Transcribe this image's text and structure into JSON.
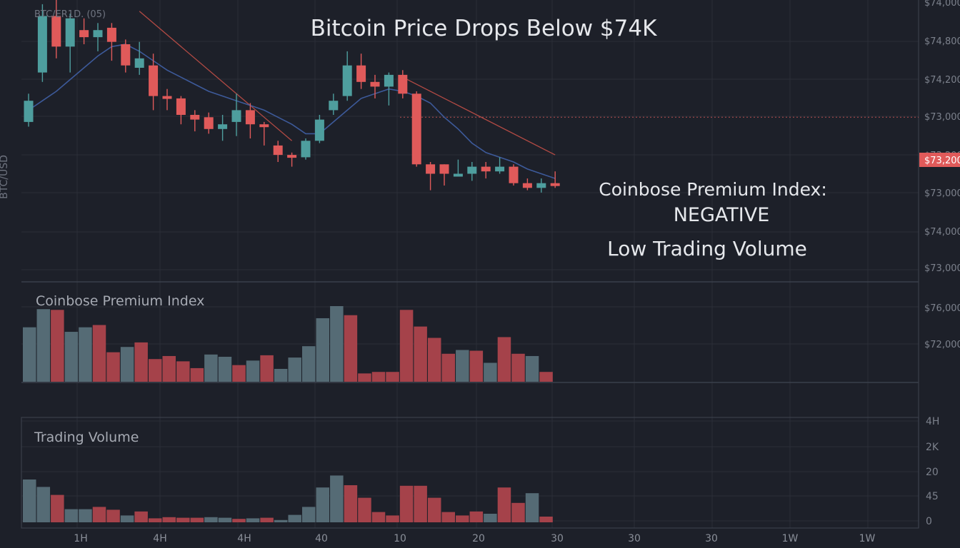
{
  "title": "Bitcoin Price Drops Below $74K",
  "symbol_label": "BTC/ER1D. (05)",
  "y_axis_title": "BTC/USD",
  "annotations": {
    "premium_line1": "Coinbose Premium Index:",
    "premium_line2": "NEGATIVE",
    "volume_note": "Low Trading Volume"
  },
  "colors": {
    "background": "#1d2029",
    "up": "#4e9e9e",
    "down": "#e05a5a",
    "bar_up": "#556b75",
    "bar_down": "#a5424a",
    "ma": "#3d5a9a",
    "trend": "#b24a44",
    "price_tag": "#e05a5a",
    "grid": "#2a2e38"
  },
  "chart_data": [
    {
      "type": "candlestick",
      "title": "Bitcoin Price Drops Below $74K",
      "ylabel": "BTC/USD",
      "y_range": [
        0,
        100
      ],
      "price_axis_labels": [
        "$74,000",
        "$74,800",
        "$74,200",
        "$73,000",
        "$73,200",
        "$73,000",
        "$74,000",
        "$73,000"
      ],
      "current_price_label": "$73,200",
      "current_price_level": 69,
      "candles": [
        {
          "o": 67,
          "c": 76,
          "h": 79,
          "l": 65
        },
        {
          "o": 88,
          "c": 112,
          "h": 117,
          "l": 84
        },
        {
          "o": 112,
          "c": 99,
          "h": 126,
          "l": 94
        },
        {
          "o": 99,
          "c": 111,
          "h": 113,
          "l": 88
        },
        {
          "o": 106,
          "c": 103,
          "h": 111,
          "l": 100
        },
        {
          "o": 103,
          "c": 106,
          "h": 109,
          "l": 97
        },
        {
          "o": 107,
          "c": 101,
          "h": 109,
          "l": 93
        },
        {
          "o": 100,
          "c": 91,
          "h": 102,
          "l": 88
        },
        {
          "o": 90,
          "c": 94,
          "h": 101,
          "l": 87
        },
        {
          "o": 91,
          "c": 78,
          "h": 96,
          "l": 72
        },
        {
          "o": 78,
          "c": 77,
          "h": 81,
          "l": 72
        },
        {
          "o": 77,
          "c": 70,
          "h": 78,
          "l": 66
        },
        {
          "o": 70,
          "c": 68,
          "h": 72,
          "l": 63
        },
        {
          "o": 69,
          "c": 64,
          "h": 71,
          "l": 62
        },
        {
          "o": 64,
          "c": 66,
          "h": 70,
          "l": 59
        },
        {
          "o": 67,
          "c": 72,
          "h": 79,
          "l": 61
        },
        {
          "o": 72,
          "c": 66,
          "h": 75,
          "l": 60
        },
        {
          "o": 66,
          "c": 65,
          "h": 67,
          "l": 57
        },
        {
          "o": 57,
          "c": 53,
          "h": 59,
          "l": 50
        },
        {
          "o": 53,
          "c": 52,
          "h": 54,
          "l": 48
        },
        {
          "o": 52,
          "c": 59,
          "h": 60,
          "l": 51
        },
        {
          "o": 59,
          "c": 68,
          "h": 70,
          "l": 58
        },
        {
          "o": 72,
          "c": 76,
          "h": 79,
          "l": 70
        },
        {
          "o": 78,
          "c": 91,
          "h": 97,
          "l": 76
        },
        {
          "o": 91,
          "c": 84,
          "h": 96,
          "l": 81
        },
        {
          "o": 84,
          "c": 82,
          "h": 87,
          "l": 77
        },
        {
          "o": 82,
          "c": 87,
          "h": 88,
          "l": 74
        },
        {
          "o": 87,
          "c": 79,
          "h": 89,
          "l": 77
        },
        {
          "o": 79,
          "c": 49,
          "h": 80,
          "l": 48
        },
        {
          "o": 49,
          "c": 45,
          "h": 50,
          "l": 38
        },
        {
          "o": 49,
          "c": 45,
          "h": 49,
          "l": 40
        },
        {
          "o": 45,
          "c": 45,
          "h": 51,
          "l": 44
        },
        {
          "o": 45,
          "c": 48,
          "h": 50,
          "l": 42
        },
        {
          "o": 48,
          "c": 46,
          "h": 50,
          "l": 43
        },
        {
          "o": 46,
          "c": 48,
          "h": 52,
          "l": 45
        },
        {
          "o": 48,
          "c": 41,
          "h": 49,
          "l": 40
        },
        {
          "o": 41,
          "c": 39,
          "h": 43,
          "l": 38
        },
        {
          "o": 39,
          "c": 41,
          "h": 43,
          "l": 37
        },
        {
          "o": 41,
          "c": 40,
          "h": 46,
          "l": 39
        }
      ],
      "moving_average": [
        72,
        76,
        80,
        85,
        90,
        95,
        99,
        100,
        97,
        93,
        89,
        86,
        83,
        80,
        78,
        76,
        74,
        72,
        69,
        66,
        62,
        62,
        67,
        72,
        77,
        79,
        81,
        80,
        78,
        75,
        69,
        64,
        58,
        54,
        52,
        50,
        47,
        45,
        43
      ],
      "trendlines": [
        {
          "from": [
            8,
            114
          ],
          "to": [
            19,
            59
          ]
        },
        {
          "from": [
            27,
            86
          ],
          "to": [
            38,
            53
          ]
        }
      ]
    },
    {
      "type": "bar",
      "title": "Coinbose Premium Index",
      "y_range": [
        0,
        100
      ],
      "axis_labels": [
        "$76,000",
        "$72,000"
      ],
      "bars": [
        {
          "v": 72,
          "up": true
        },
        {
          "v": 96,
          "up": true
        },
        {
          "v": 95,
          "up": false
        },
        {
          "v": 66,
          "up": true
        },
        {
          "v": 72,
          "up": true
        },
        {
          "v": 75,
          "up": false
        },
        {
          "v": 39,
          "up": false
        },
        {
          "v": 46,
          "up": true
        },
        {
          "v": 52,
          "up": false
        },
        {
          "v": 30,
          "up": false
        },
        {
          "v": 34,
          "up": false
        },
        {
          "v": 27,
          "up": false
        },
        {
          "v": 18,
          "up": false
        },
        {
          "v": 36,
          "up": true
        },
        {
          "v": 33,
          "up": true
        },
        {
          "v": 22,
          "up": false
        },
        {
          "v": 28,
          "up": true
        },
        {
          "v": 35,
          "up": false
        },
        {
          "v": 17,
          "up": true
        },
        {
          "v": 32,
          "up": true
        },
        {
          "v": 47,
          "up": true
        },
        {
          "v": 84,
          "up": true
        },
        {
          "v": 100,
          "up": true
        },
        {
          "v": 88,
          "up": false
        },
        {
          "v": 11,
          "up": false
        },
        {
          "v": 13,
          "up": false
        },
        {
          "v": 13,
          "up": false
        },
        {
          "v": 95,
          "up": false
        },
        {
          "v": 73,
          "up": false
        },
        {
          "v": 58,
          "up": false
        },
        {
          "v": 37,
          "up": false
        },
        {
          "v": 42,
          "up": true
        },
        {
          "v": 41,
          "up": false
        },
        {
          "v": 25,
          "up": true
        },
        {
          "v": 59,
          "up": false
        },
        {
          "v": 37,
          "up": false
        },
        {
          "v": 34,
          "up": true
        },
        {
          "v": 13,
          "up": false
        }
      ]
    },
    {
      "type": "bar",
      "title": "Trading Volume",
      "y_range": [
        0,
        100
      ],
      "axis_labels": [
        "4H",
        "2K",
        "20",
        "45",
        "0"
      ],
      "x_tick_labels": [
        "1H",
        "4H",
        "4H",
        "40",
        "10",
        "20",
        "30",
        "30",
        "30",
        "1W",
        "1W"
      ],
      "bars": [
        {
          "v": 75,
          "up": true
        },
        {
          "v": 62,
          "up": true
        },
        {
          "v": 48,
          "up": false
        },
        {
          "v": 23,
          "up": true
        },
        {
          "v": 23,
          "up": true
        },
        {
          "v": 27,
          "up": false
        },
        {
          "v": 22,
          "up": false
        },
        {
          "v": 12,
          "up": true
        },
        {
          "v": 19,
          "up": false
        },
        {
          "v": 7,
          "up": false
        },
        {
          "v": 9,
          "up": false
        },
        {
          "v": 8,
          "up": false
        },
        {
          "v": 8,
          "up": false
        },
        {
          "v": 9,
          "up": true
        },
        {
          "v": 8,
          "up": true
        },
        {
          "v": 6,
          "up": false
        },
        {
          "v": 7,
          "up": true
        },
        {
          "v": 8,
          "up": false
        },
        {
          "v": 4,
          "up": true
        },
        {
          "v": 13,
          "up": true
        },
        {
          "v": 27,
          "up": true
        },
        {
          "v": 61,
          "up": true
        },
        {
          "v": 82,
          "up": true
        },
        {
          "v": 65,
          "up": false
        },
        {
          "v": 43,
          "up": false
        },
        {
          "v": 18,
          "up": false
        },
        {
          "v": 12,
          "up": false
        },
        {
          "v": 64,
          "up": false
        },
        {
          "v": 64,
          "up": false
        },
        {
          "v": 43,
          "up": false
        },
        {
          "v": 18,
          "up": false
        },
        {
          "v": 12,
          "up": false
        },
        {
          "v": 19,
          "up": false
        },
        {
          "v": 15,
          "up": true
        },
        {
          "v": 61,
          "up": false
        },
        {
          "v": 34,
          "up": false
        },
        {
          "v": 51,
          "up": true
        },
        {
          "v": 10,
          "up": false
        }
      ]
    }
  ]
}
